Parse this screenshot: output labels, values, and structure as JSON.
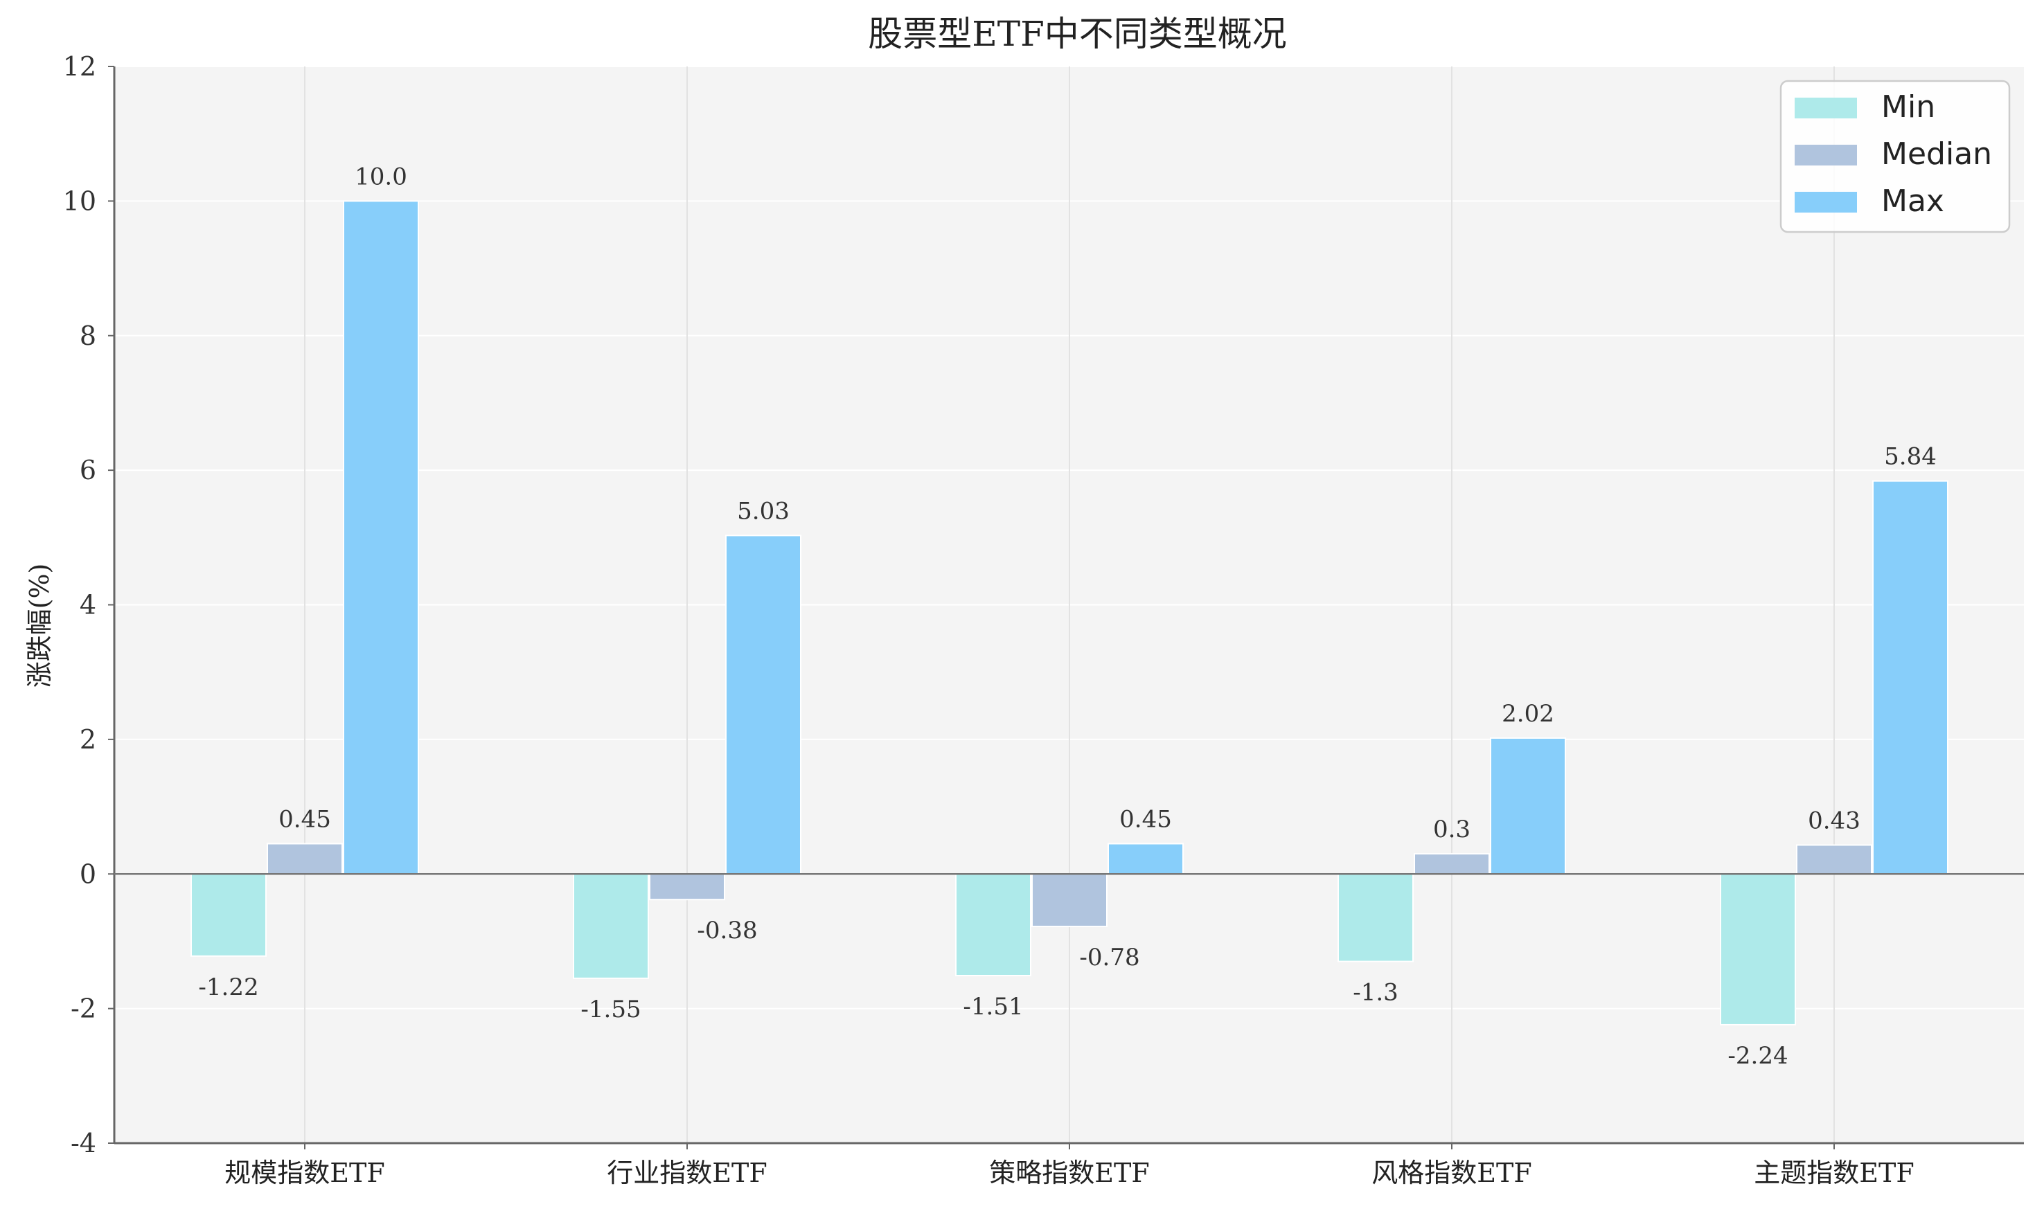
{
  "chart_data": {
    "type": "bar",
    "title": "股票型ETF中不同类型概况",
    "xlabel": "",
    "ylabel": "涨跌幅(%)",
    "ylim": [
      -4,
      12
    ],
    "yticks": [
      -4,
      -2,
      0,
      2,
      4,
      6,
      8,
      10,
      12
    ],
    "grid": true,
    "legend_position": "top-right",
    "categories": [
      "规模指数ETF",
      "行业指数ETF",
      "策略指数ETF",
      "风格指数ETF",
      "主题指数ETF"
    ],
    "series": [
      {
        "name": "Min",
        "color": "#aeeaea",
        "values": [
          -1.22,
          -1.55,
          -1.51,
          -1.3,
          -2.24
        ],
        "labels": [
          "-1.22",
          "-1.55",
          "-1.51",
          "-1.3",
          "-2.24"
        ]
      },
      {
        "name": "Median",
        "color": "#b0c4de",
        "values": [
          0.45,
          -0.38,
          -0.78,
          0.3,
          0.43
        ],
        "labels": [
          "0.45",
          "-0.38",
          "-0.78",
          "0.3",
          "0.43"
        ]
      },
      {
        "name": "Max",
        "color": "#87cefa",
        "values": [
          10.0,
          5.03,
          0.45,
          2.02,
          5.84
        ],
        "labels": [
          "10.0",
          "5.03",
          "0.45",
          "2.02",
          "5.84"
        ]
      }
    ]
  }
}
